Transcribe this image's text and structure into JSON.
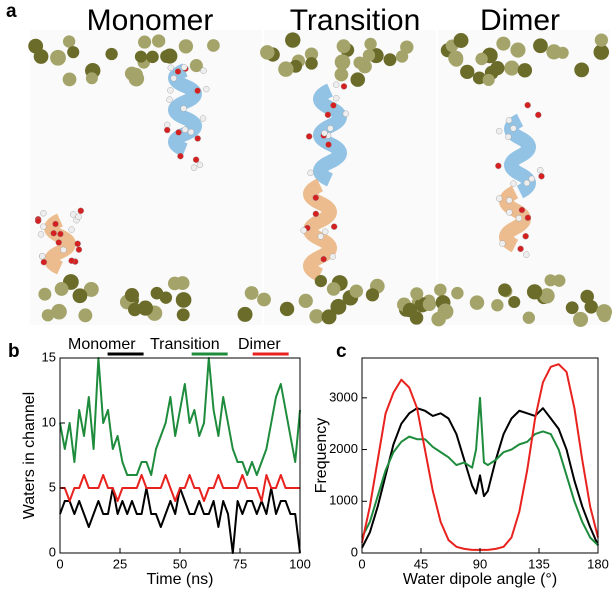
{
  "panel_labels": [
    "a",
    "b",
    "c"
  ],
  "structure_titles": [
    "Monomer",
    "Transition",
    "Dimer"
  ],
  "chart_data": [
    {
      "type": "line",
      "xlabel": "Time (ns)",
      "ylabel": "Waters in channel",
      "xlim": [
        0,
        100
      ],
      "ylim": [
        0,
        15
      ],
      "xticks": [
        0,
        25,
        50,
        75,
        100
      ],
      "yticks": [
        0,
        5,
        10,
        15
      ],
      "legend": "top",
      "x": [
        0,
        2,
        4,
        6,
        8,
        10,
        12,
        14,
        16,
        18,
        20,
        22,
        24,
        26,
        28,
        30,
        32,
        34,
        36,
        38,
        40,
        42,
        44,
        46,
        48,
        50,
        52,
        54,
        56,
        58,
        60,
        62,
        64,
        66,
        68,
        70,
        72,
        74,
        76,
        78,
        80,
        82,
        84,
        86,
        88,
        90,
        92,
        94,
        96,
        98,
        100
      ],
      "series": [
        {
          "name": "Monomer",
          "color": "#000000",
          "values": [
            3,
            4,
            4,
            3,
            4,
            3,
            2,
            3,
            4,
            3,
            3,
            5,
            3,
            4,
            3,
            4,
            3,
            3,
            5,
            3,
            3,
            2,
            3,
            4,
            3,
            5,
            4,
            3,
            3,
            4,
            3,
            3,
            4,
            2,
            4,
            3,
            0,
            4,
            3,
            4,
            4,
            3,
            4,
            3,
            5,
            3,
            4,
            4,
            3,
            3,
            0
          ]
        },
        {
          "name": "Transition",
          "color": "#1e8c3c",
          "values": [
            10,
            8,
            10,
            7,
            11,
            9,
            12,
            8,
            15,
            10,
            11,
            8,
            9,
            7,
            6,
            6,
            6,
            7,
            7,
            6,
            8,
            9,
            10,
            12,
            9,
            11,
            13,
            10,
            11,
            9,
            10,
            15,
            11,
            9,
            12,
            10,
            8,
            7,
            7,
            6,
            7,
            6,
            7,
            8,
            10,
            12,
            13,
            11,
            9,
            7,
            11
          ]
        },
        {
          "name": "Dimer",
          "color": "#e8221e",
          "values": [
            5,
            5,
            4,
            5,
            5,
            6,
            5,
            5,
            5,
            6,
            5,
            5,
            4,
            5,
            5,
            5,
            5,
            6,
            5,
            5,
            5,
            5,
            6,
            5,
            4,
            5,
            5,
            6,
            5,
            5,
            4,
            5,
            5,
            6,
            5,
            5,
            5,
            5,
            6,
            5,
            5,
            5,
            4,
            6,
            5,
            5,
            6,
            5,
            5,
            5,
            5
          ]
        }
      ]
    },
    {
      "type": "line",
      "xlabel": "Water dipole angle (°)",
      "ylabel": "Frequency",
      "xlim": [
        0,
        180
      ],
      "ylim": [
        0,
        3770
      ],
      "xticks": [
        0,
        45,
        90,
        135,
        180
      ],
      "yticks": [
        0,
        1000,
        2000,
        3000
      ],
      "x": [
        0,
        6,
        12,
        18,
        24,
        30,
        36,
        42,
        48,
        54,
        60,
        66,
        72,
        78,
        84,
        87,
        90,
        93,
        96,
        102,
        108,
        114,
        120,
        126,
        132,
        138,
        144,
        150,
        156,
        162,
        168,
        174,
        180
      ],
      "series": [
        {
          "name": "Monomer",
          "color": "#000000",
          "values": [
            100,
            400,
            900,
            1500,
            2100,
            2500,
            2700,
            2800,
            2750,
            2650,
            2700,
            2600,
            2300,
            1800,
            1300,
            1150,
            1500,
            1100,
            1200,
            1800,
            2300,
            2600,
            2750,
            2700,
            2650,
            2800,
            2600,
            2400,
            2000,
            1400,
            900,
            500,
            150
          ]
        },
        {
          "name": "Transition",
          "color": "#1e8c3c",
          "values": [
            300,
            600,
            1100,
            1600,
            1950,
            2150,
            2250,
            2200,
            2200,
            2050,
            1950,
            1850,
            1700,
            1750,
            1650,
            2000,
            3000,
            1750,
            1700,
            1800,
            1950,
            2000,
            2100,
            2150,
            2300,
            2350,
            2300,
            2000,
            1500,
            1000,
            600,
            300,
            150
          ]
        },
        {
          "name": "Dimer",
          "color": "#e8221e",
          "values": [
            200,
            900,
            1800,
            2700,
            3100,
            3350,
            3200,
            2800,
            2000,
            1200,
            600,
            250,
            120,
            80,
            60,
            60,
            60,
            60,
            60,
            80,
            120,
            300,
            800,
            1600,
            2600,
            3300,
            3600,
            3650,
            3500,
            2800,
            1800,
            900,
            300
          ]
        }
      ]
    }
  ]
}
